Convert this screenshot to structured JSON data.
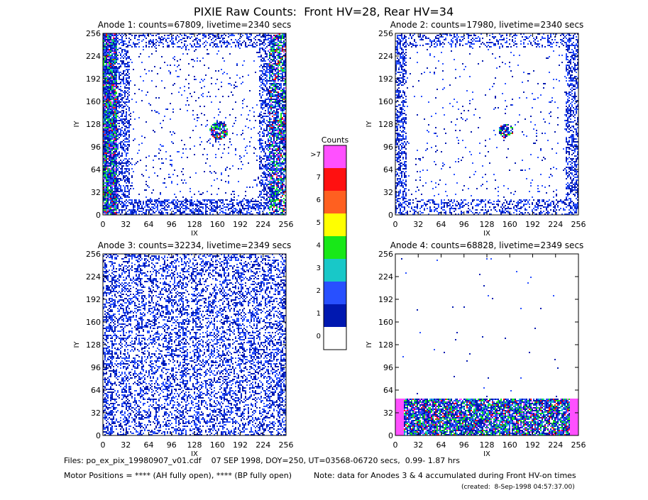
{
  "title": "PIXIE Raw Counts:  Front HV=28, Rear HV=34",
  "chart_data": [
    {
      "type": "heatmap",
      "title": "Anode 1: counts=67809, livetime=2340 secs",
      "xlabel": "IX",
      "ylabel": "IY",
      "xlim": [
        0,
        256
      ],
      "ylim": [
        0,
        256
      ],
      "xticks": [
        0,
        32,
        64,
        96,
        128,
        160,
        192,
        224,
        256
      ],
      "yticks": [
        0,
        32,
        64,
        96,
        128,
        160,
        192,
        224,
        256
      ]
    },
    {
      "type": "heatmap",
      "title": "Anode 2: counts=17980, livetime=2340 secs",
      "xlabel": "IX",
      "ylabel": "IY",
      "xlim": [
        0,
        256
      ],
      "ylim": [
        0,
        256
      ],
      "xticks": [
        0,
        32,
        64,
        96,
        128,
        160,
        192,
        224,
        256
      ],
      "yticks": [
        0,
        32,
        64,
        96,
        128,
        160,
        192,
        224,
        256
      ]
    },
    {
      "type": "heatmap",
      "title": "Anode 3: counts=32234, livetime=2349 secs",
      "xlabel": "IX",
      "ylabel": "IY",
      "xlim": [
        0,
        256
      ],
      "ylim": [
        0,
        256
      ],
      "xticks": [
        0,
        32,
        64,
        96,
        128,
        160,
        192,
        224,
        256
      ],
      "yticks": [
        0,
        32,
        64,
        96,
        128,
        160,
        192,
        224,
        256
      ]
    },
    {
      "type": "heatmap",
      "title": "Anode 4: counts=68828, livetime=2349 secs",
      "xlabel": "IX",
      "ylabel": "IY",
      "xlim": [
        0,
        256
      ],
      "ylim": [
        0,
        256
      ],
      "xticks": [
        0,
        32,
        64,
        96,
        128,
        160,
        192,
        224,
        256
      ],
      "yticks": [
        0,
        32,
        64,
        96,
        128,
        160,
        192,
        224,
        256
      ]
    }
  ],
  "colorbar": {
    "title": "Counts",
    "labels": [
      "0",
      "1",
      "2",
      "3",
      "4",
      "5",
      "6",
      "7",
      ">7"
    ],
    "colors": [
      "#ffffff",
      "#0018b0",
      "#2850ff",
      "#18c8c8",
      "#18e818",
      "#ffff00",
      "#ff6020",
      "#ff1010",
      "#ff50ff"
    ]
  },
  "footer": {
    "files": "Files: po_ex_pix_19980907_v01.cdf    07 SEP 1998, DOY=250, UT=03568-06720 secs,  0.99- 1.87 hrs",
    "motor": "Motor Positions = **** (AH fully open), **** (BP fully open)",
    "note": "Note: data for Anodes 3 & 4 accumulated during Front HV-on times",
    "created": "(created:  8-Sep-1998 04:57:37.00)"
  }
}
